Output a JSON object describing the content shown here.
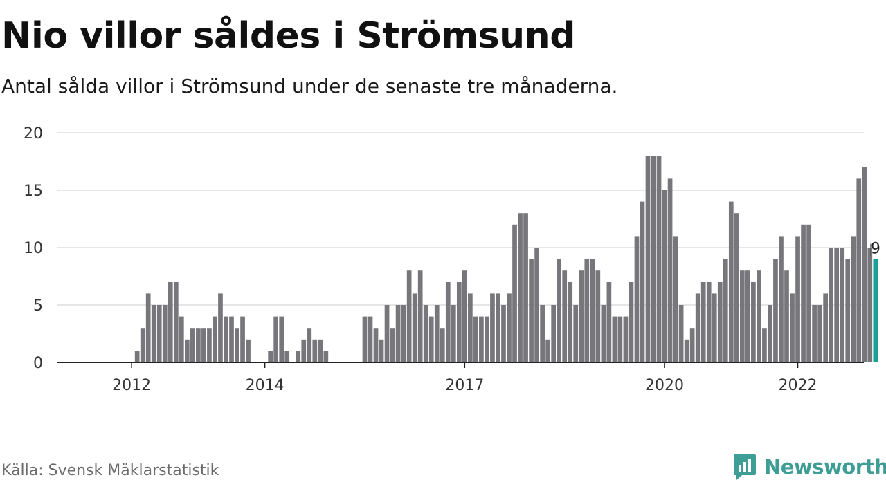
{
  "header": {
    "title": "Nio villor såldes i Strömsund",
    "subtitle": "Antal sålda villor i Strömsund under de senaste tre månaderna."
  },
  "footer": {
    "source": "Källa: Svensk Mäklarstatistik",
    "brand": "Newsworthy",
    "brand_icon": "newsworthy-logo-icon"
  },
  "colors": {
    "bar": "#77767b",
    "highlight": "#19a098",
    "grid": "#dddddd",
    "axis": "#222222",
    "brand": "#3e9d94"
  },
  "chart_data": {
    "type": "bar",
    "title": "Nio villor såldes i Strömsund",
    "ylim": [
      0,
      20
    ],
    "yticks": [
      0,
      5,
      10,
      15,
      20
    ],
    "xticks": [
      "2012",
      "2014",
      "2017",
      "2020",
      "2022"
    ],
    "xtick_index": [
      7,
      31,
      67,
      103,
      127
    ],
    "grid": true,
    "highlight_last": true,
    "annotation": {
      "text": "9",
      "target": "last-bar"
    },
    "values": [
      0,
      0,
      0,
      0,
      0,
      0,
      0,
      0,
      1,
      3,
      6,
      5,
      5,
      5,
      7,
      7,
      4,
      2,
      3,
      3,
      3,
      3,
      4,
      6,
      4,
      4,
      3,
      4,
      2,
      0,
      0,
      0,
      1,
      4,
      4,
      1,
      0,
      1,
      2,
      3,
      2,
      2,
      1,
      0,
      0,
      0,
      0,
      0,
      0,
      4,
      4,
      3,
      2,
      5,
      3,
      5,
      5,
      8,
      6,
      8,
      5,
      4,
      5,
      3,
      7,
      5,
      7,
      8,
      6,
      4,
      4,
      4,
      6,
      6,
      5,
      6,
      12,
      13,
      13,
      9,
      10,
      5,
      2,
      5,
      9,
      8,
      7,
      5,
      8,
      9,
      9,
      8,
      5,
      7,
      4,
      4,
      4,
      7,
      11,
      14,
      18,
      18,
      18,
      15,
      16,
      11,
      5,
      2,
      3,
      6,
      7,
      7,
      6,
      7,
      9,
      14,
      13,
      8,
      8,
      7,
      8,
      3,
      5,
      9,
      11,
      8,
      6,
      11,
      12,
      12,
      5,
      5,
      6,
      10,
      10,
      10,
      9,
      11,
      16,
      17,
      10,
      9
    ]
  }
}
